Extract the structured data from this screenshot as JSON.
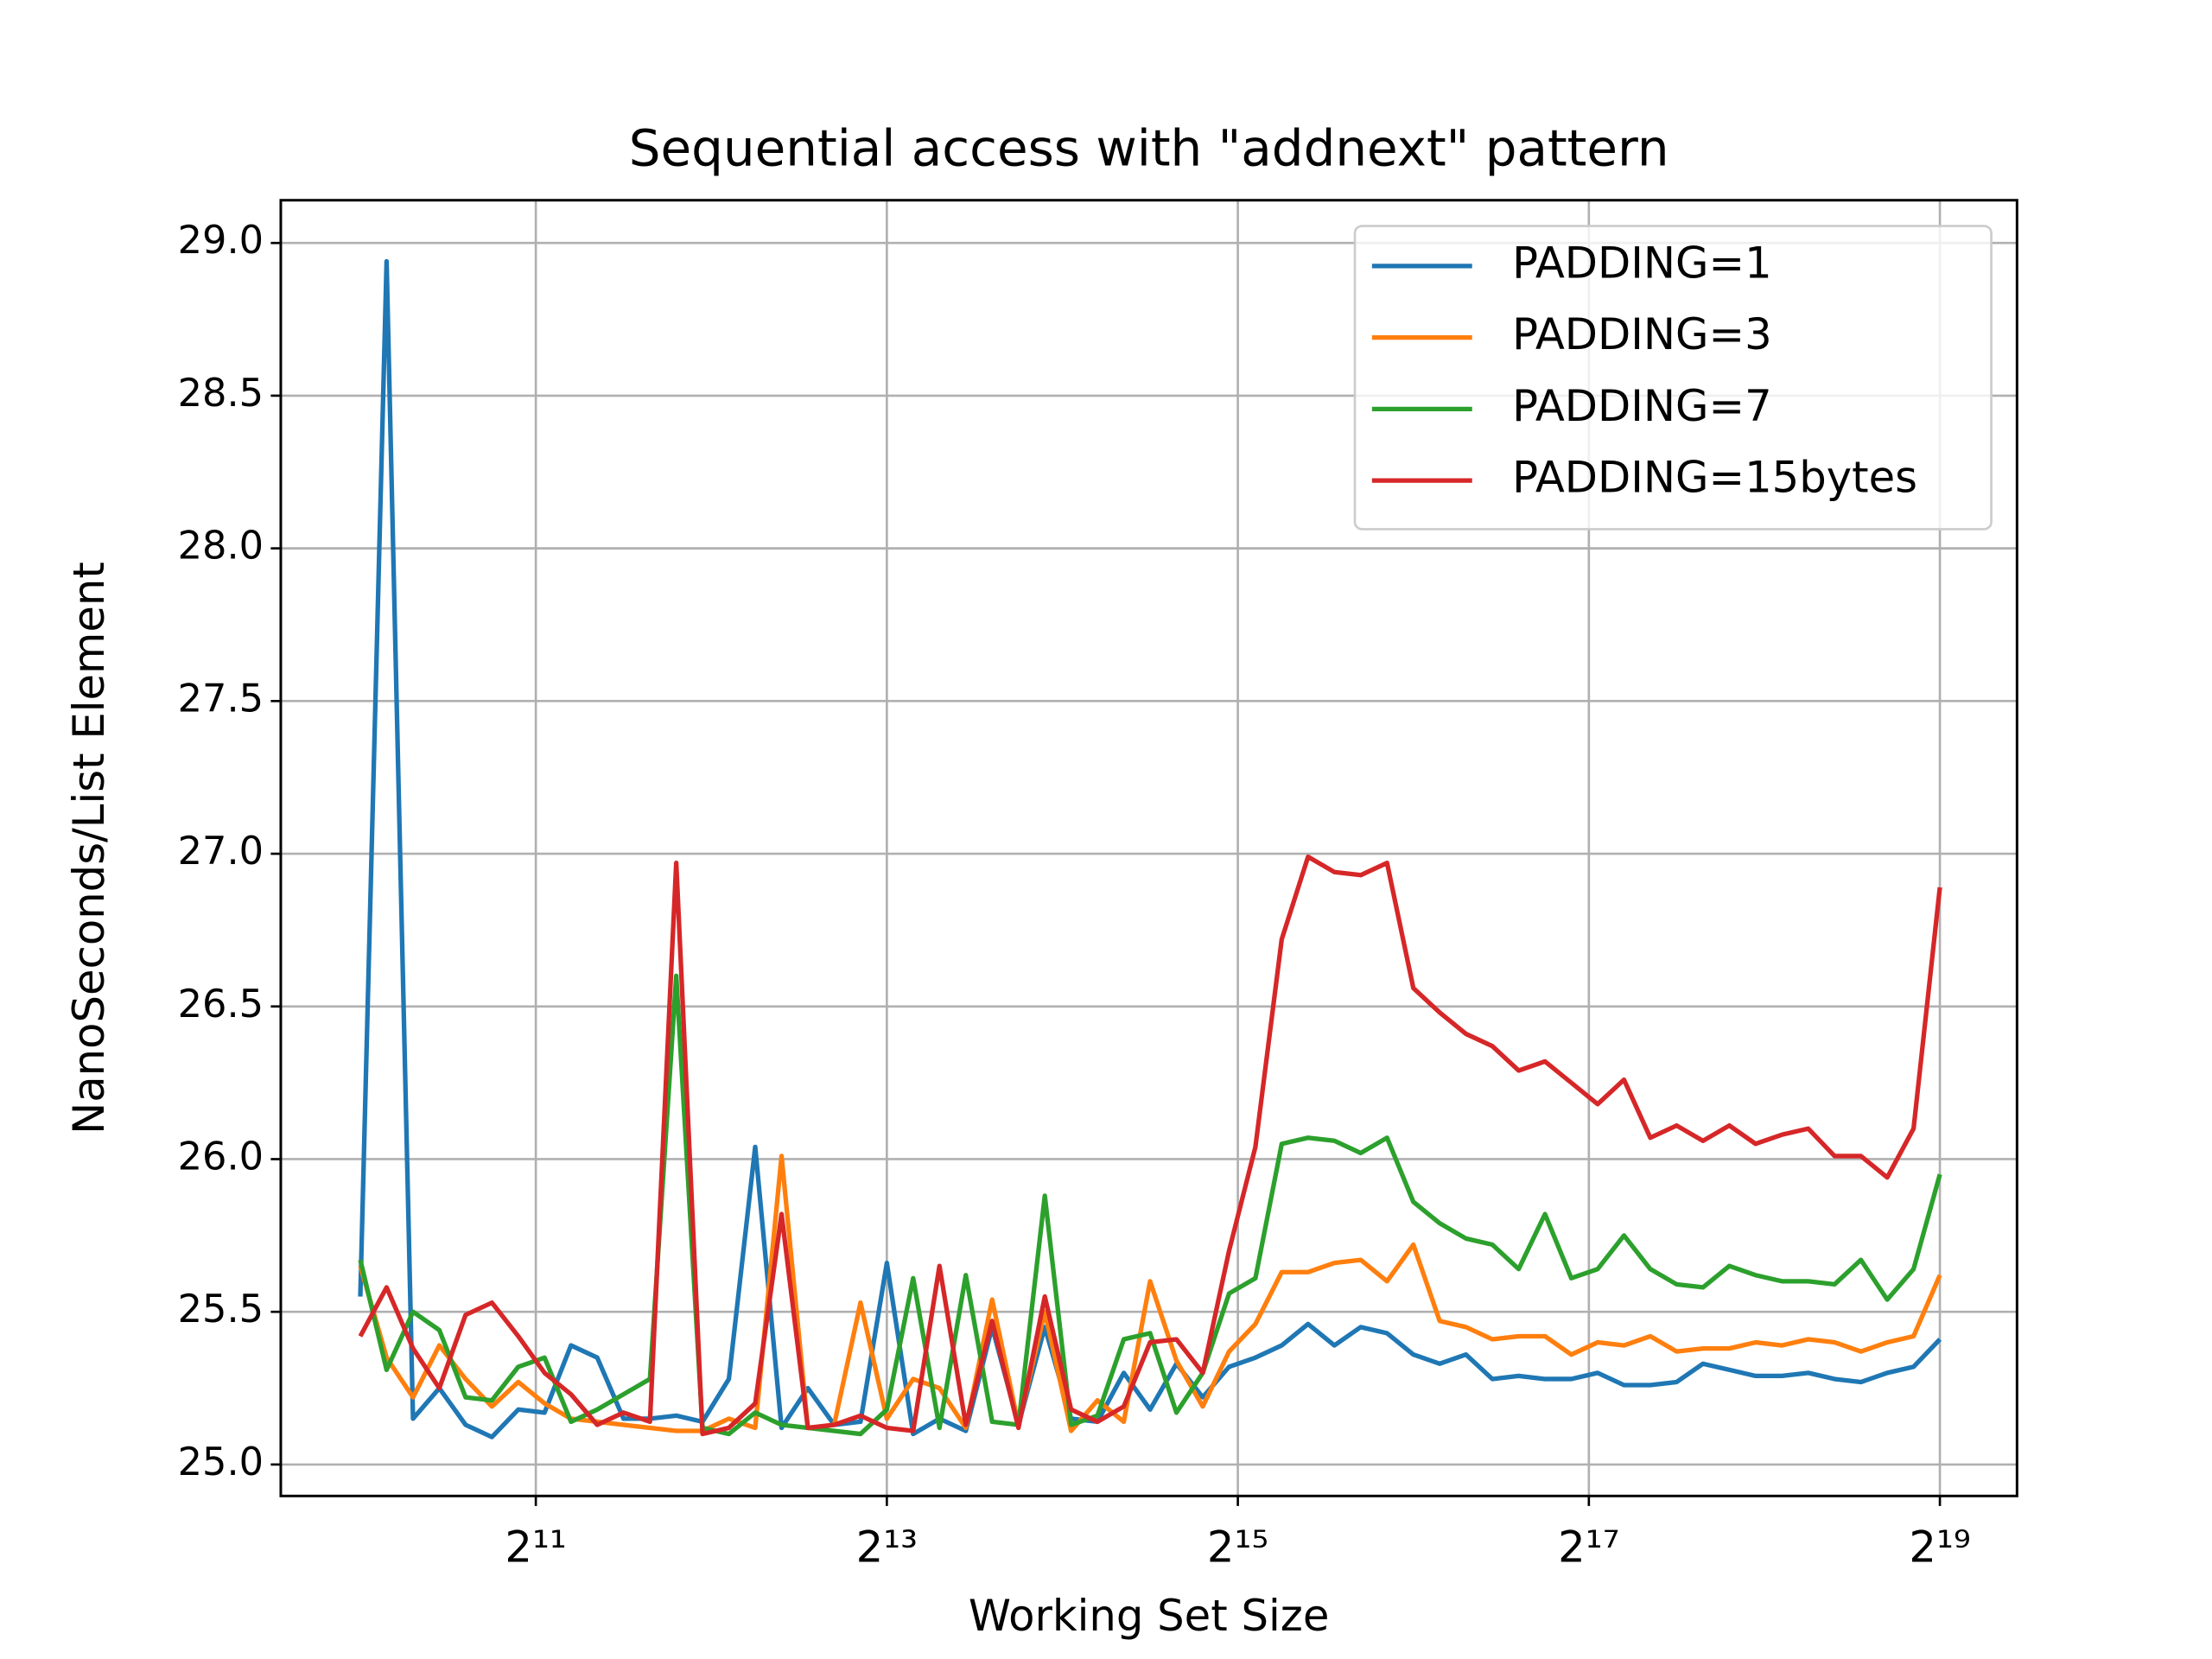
{
  "chart_data": {
    "type": "line",
    "title": "Sequential access with \"addnext\" pattern",
    "x_label": "Working Set Size",
    "y_label": "NanoSeconds/List Element",
    "x_scale": "log2",
    "grid": true,
    "legend": "upper right",
    "xlim": [
      748,
      711000
    ],
    "ylim": [
      24.897,
      29.14
    ],
    "xticks": [
      {
        "value": 2048,
        "label": "2¹¹"
      },
      {
        "value": 8192,
        "label": "2¹³"
      },
      {
        "value": 32768,
        "label": "2¹⁵"
      },
      {
        "value": 131072,
        "label": "2¹⁷"
      },
      {
        "value": 524288,
        "label": "2¹⁹"
      }
    ],
    "yticks": [
      {
        "value": 25,
        "label": "25.0"
      },
      25.5,
      {
        "value": 26,
        "label": "26.0"
      },
      26.5,
      {
        "value": 27,
        "label": "27.0"
      },
      27.5,
      {
        "value": 28,
        "label": "28.0"
      },
      28.5,
      {
        "value": 29,
        "label": "29.0"
      }
    ],
    "x": [
      1024,
      1136,
      1261,
      1399,
      1552,
      1722,
      1911,
      2120,
      2353,
      2610,
      2896,
      3214,
      3566,
      3956,
      4390,
      4871,
      5405,
      5997,
      6654,
      7383,
      8192,
      9090,
      10085,
      11190,
      12417,
      13777,
      15287,
      16962,
      18820,
      20883,
      23170,
      25710,
      28526,
      31652,
      35121,
      38968,
      43237,
      47976,
      53232,
      59064,
      65536,
      72718,
      80681,
      89522,
      99334,
      110218,
      122297,
      135697,
      150568,
      167068,
      185364,
      205678,
      228215,
      253214,
      280971,
      311754,
      345887,
      383806,
      425879,
      472549,
      524288
    ],
    "series": [
      {
        "name": "PADDING=1",
        "color": "#1f77b4",
        "values": [
          25.55,
          28.94,
          25.15,
          25.25,
          25.13,
          25.09,
          25.18,
          25.17,
          25.39,
          25.35,
          25.15,
          25.15,
          25.16,
          25.14,
          25.28,
          26.04,
          25.12,
          25.25,
          25.13,
          25.14,
          25.66,
          25.1,
          25.15,
          25.11,
          25.45,
          25.13,
          25.45,
          25.15,
          25.14,
          25.3,
          25.18,
          25.33,
          25.22,
          25.32,
          25.35,
          25.39,
          25.46,
          25.39,
          25.45,
          25.43,
          25.36,
          25.33,
          25.36,
          25.28,
          25.29,
          25.28,
          25.28,
          25.3,
          25.26,
          25.26,
          25.27,
          25.33,
          25.31,
          25.29,
          25.29,
          25.3,
          25.28,
          25.27,
          25.3,
          25.32,
          25.41
        ]
      },
      {
        "name": "PADDING=3",
        "color": "#ff7f0e",
        "values": [
          25.65,
          25.35,
          25.22,
          25.39,
          25.28,
          25.19,
          25.27,
          25.2,
          25.15,
          25.14,
          25.13,
          25.12,
          25.11,
          25.11,
          25.15,
          25.12,
          26.01,
          25.12,
          25.13,
          25.53,
          25.15,
          25.28,
          25.25,
          25.12,
          25.54,
          25.13,
          25.5,
          25.11,
          25.21,
          25.14,
          25.6,
          25.34,
          25.19,
          25.37,
          25.46,
          25.63,
          25.63,
          25.66,
          25.67,
          25.6,
          25.72,
          25.47,
          25.45,
          25.41,
          25.42,
          25.42,
          25.36,
          25.4,
          25.39,
          25.42,
          25.37,
          25.38,
          25.38,
          25.4,
          25.39,
          25.41,
          25.4,
          25.37,
          25.4,
          25.42,
          25.62
        ]
      },
      {
        "name": "PADDING=7",
        "color": "#2ca02c",
        "values": [
          25.67,
          25.31,
          25.5,
          25.44,
          25.22,
          25.21,
          25.32,
          25.35,
          25.14,
          25.18,
          25.23,
          25.28,
          26.6,
          25.12,
          25.1,
          25.17,
          25.13,
          25.12,
          25.11,
          25.1,
          25.18,
          25.61,
          25.12,
          25.62,
          25.14,
          25.13,
          25.88,
          25.13,
          25.16,
          25.41,
          25.43,
          25.17,
          25.3,
          25.56,
          25.61,
          26.05,
          26.07,
          26.06,
          26.02,
          26.07,
          25.86,
          25.79,
          25.74,
          25.72,
          25.64,
          25.82,
          25.61,
          25.64,
          25.75,
          25.64,
          25.59,
          25.58,
          25.65,
          25.62,
          25.6,
          25.6,
          25.59,
          25.67,
          25.54,
          25.64,
          25.95
        ]
      },
      {
        "name": "PADDING=15bytes",
        "color": "#d62728",
        "values": [
          25.42,
          25.58,
          25.38,
          25.25,
          25.49,
          25.53,
          25.42,
          25.3,
          25.23,
          25.13,
          25.17,
          25.14,
          26.97,
          25.1,
          25.12,
          25.2,
          25.82,
          25.12,
          25.13,
          25.16,
          25.12,
          25.11,
          25.65,
          25.13,
          25.47,
          25.12,
          25.55,
          25.18,
          25.14,
          25.19,
          25.4,
          25.41,
          25.3,
          25.7,
          26.04,
          26.72,
          26.99,
          26.94,
          26.93,
          26.97,
          26.56,
          26.48,
          26.41,
          26.37,
          26.29,
          26.32,
          26.25,
          26.18,
          26.26,
          26.07,
          26.11,
          26.06,
          26.11,
          26.05,
          26.08,
          26.1,
          26.01,
          26.01,
          25.94,
          26.1,
          26.89
        ]
      }
    ]
  }
}
